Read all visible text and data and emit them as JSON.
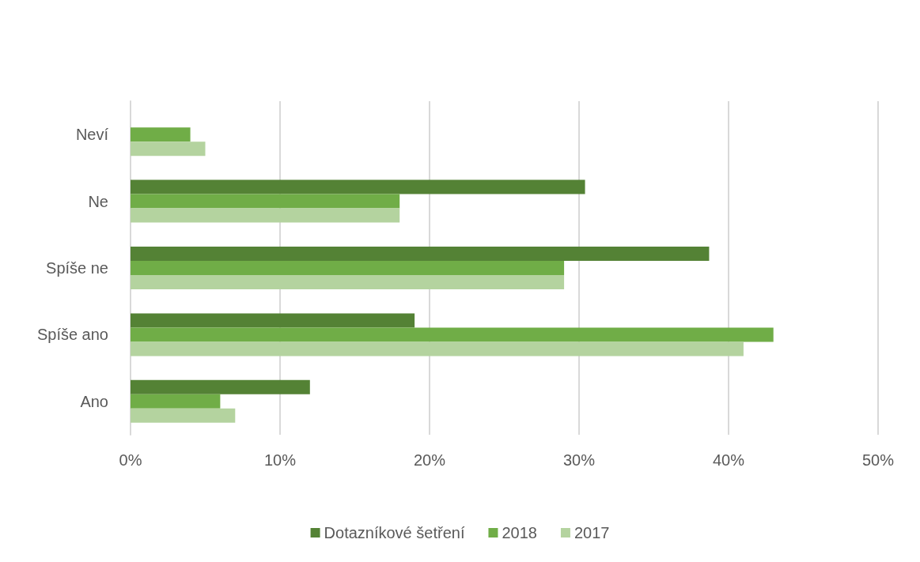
{
  "chart_data": {
    "type": "bar",
    "orientation": "horizontal",
    "categories": [
      "Neví",
      "Ne",
      "Spíše ne",
      "Spíše ano",
      "Ano"
    ],
    "series": [
      {
        "name": "Dotazníkové šetření",
        "color": "#548235",
        "values": [
          null,
          30.4,
          38.7,
          19,
          12
        ]
      },
      {
        "name": "2018",
        "color": "#70ad47",
        "values": [
          4,
          18,
          29,
          43,
          6
        ]
      },
      {
        "name": "2017",
        "color": "#b4d39f",
        "values": [
          5,
          18,
          29,
          41,
          7
        ]
      }
    ],
    "xlim": [
      0,
      50
    ],
    "xticks": [
      {
        "value": 0,
        "label": "0%"
      },
      {
        "value": 10,
        "label": "10%"
      },
      {
        "value": 20,
        "label": "20%"
      },
      {
        "value": 30,
        "label": "30%"
      },
      {
        "value": 40,
        "label": "40%"
      },
      {
        "value": 50,
        "label": "50%"
      }
    ],
    "grid": "x",
    "legend": "bottom"
  }
}
